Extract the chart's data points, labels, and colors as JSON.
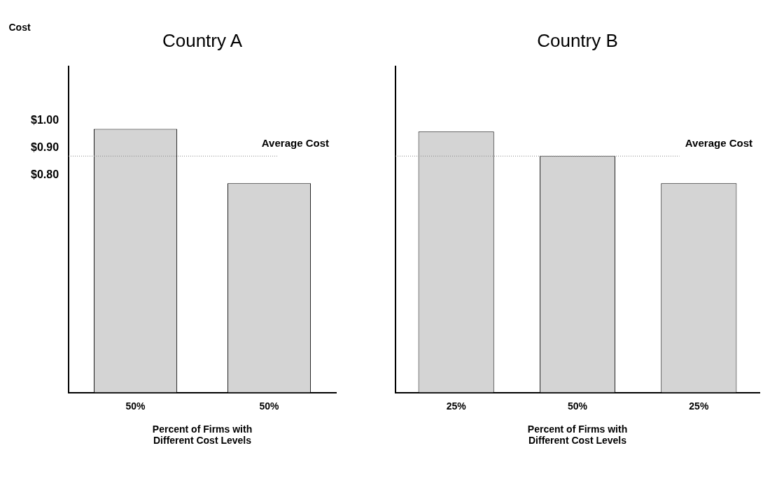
{
  "chart_data": [
    {
      "type": "bar",
      "title": "Country A",
      "ylabel": "Cost",
      "xlabel": "Percent of Firms with\nDifferent Cost Levels",
      "categories": [
        "50%",
        "50%"
      ],
      "series": [
        {
          "color": "#d4d4d4",
          "values": [
            0.97,
            0.77
          ]
        }
      ],
      "ylim": [
        0,
        1.2
      ],
      "yticks": [
        {
          "value": 0.8,
          "label": "$0.80"
        },
        {
          "value": 0.9,
          "label": "$0.90"
        },
        {
          "value": 1.0,
          "label": "$1.00"
        }
      ],
      "grid": false,
      "legend": false,
      "ref_lines": [
        {
          "axis": "y",
          "value": 0.87,
          "label": "Average Cost",
          "color": "#888888",
          "line_style": "dotted"
        }
      ]
    },
    {
      "type": "bar",
      "title": "Country B",
      "xlabel": "Percent of Firms with\nDifferent Cost Levels",
      "categories": [
        "25%",
        "50%",
        "25%"
      ],
      "series": [
        {
          "color": "#d4d4d4",
          "values": [
            0.96,
            0.87,
            0.77
          ]
        }
      ],
      "ylim": [
        0,
        1.2
      ],
      "tick_labels": "x",
      "grid": false,
      "legend": false,
      "ref_lines": [
        {
          "axis": "y",
          "value": 0.87,
          "label": "Average Cost",
          "color": "#888888",
          "line_style": "dotted"
        }
      ]
    }
  ]
}
